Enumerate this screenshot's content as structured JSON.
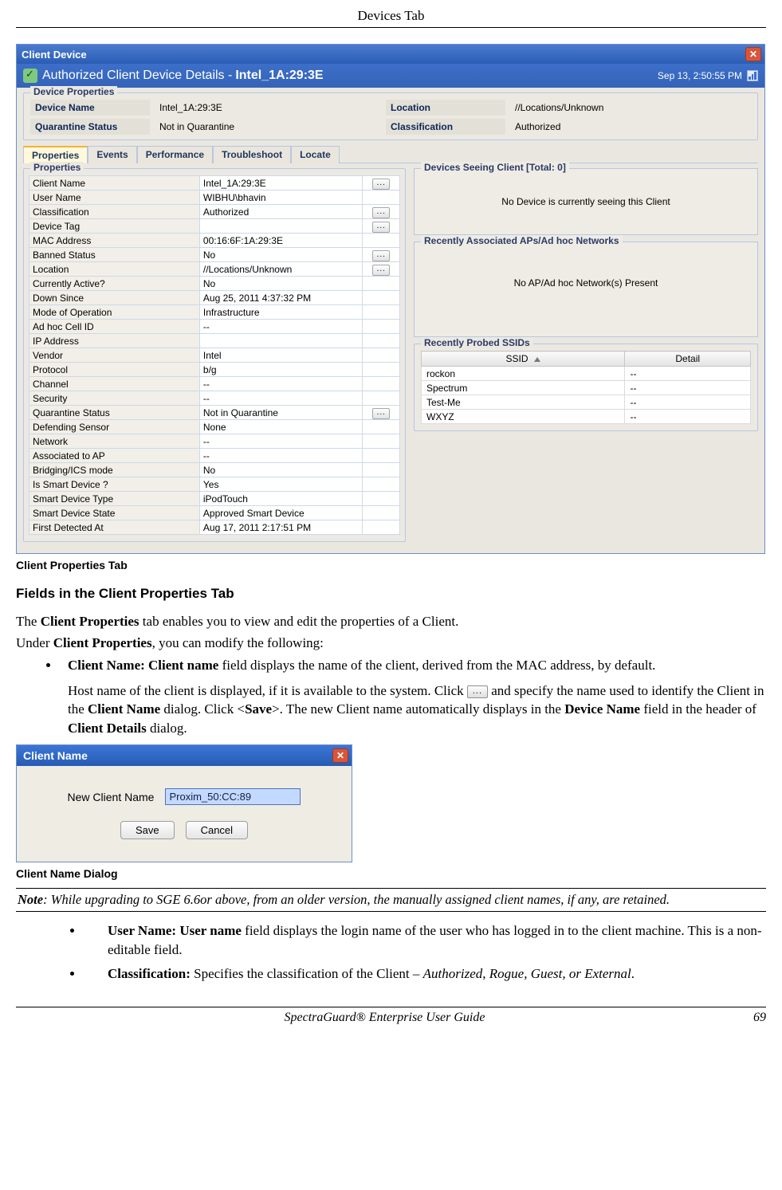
{
  "page_header": "Devices Tab",
  "footer_center": "SpectraGuard® Enterprise User Guide",
  "footer_page": "69",
  "win": {
    "title": "Client Device",
    "sub_prefix": "Authorized Client Device Details - ",
    "sub_name": "Intel_1A:29:3E",
    "time": "Sep 13, 2:50:55 PM",
    "dp_legend": "Device Properties",
    "dp": {
      "l1": "Device Name",
      "v1": "Intel_1A:29:3E",
      "l2": "Location",
      "v2": "//Locations/Unknown",
      "l3": "Quarantine Status",
      "v3": "Not in Quarantine",
      "l4": "Classification",
      "v4": "Authorized"
    },
    "tabs": [
      "Properties",
      "Events",
      "Performance",
      "Troubleshoot",
      "Locate"
    ],
    "props_legend": "Properties",
    "props": [
      [
        "Client Name",
        "Intel_1A:29:3E",
        true
      ],
      [
        "User Name",
        "WIBHU\\bhavin",
        false
      ],
      [
        "Classification",
        "Authorized",
        true
      ],
      [
        "Device Tag",
        "",
        true
      ],
      [
        "MAC Address",
        "00:16:6F:1A:29:3E",
        false
      ],
      [
        "Banned Status",
        "No",
        true
      ],
      [
        "Location",
        "//Locations/Unknown",
        true
      ],
      [
        "Currently Active?",
        "No",
        false
      ],
      [
        "Down Since",
        "Aug 25, 2011 4:37:32 PM",
        false
      ],
      [
        "Mode of Operation",
        "Infrastructure",
        false
      ],
      [
        "Ad hoc Cell ID",
        "--",
        false
      ],
      [
        "IP Address",
        "",
        false
      ],
      [
        "Vendor",
        "Intel",
        false
      ],
      [
        "Protocol",
        "b/g",
        false
      ],
      [
        "Channel",
        "--",
        false
      ],
      [
        "Security",
        "--",
        false
      ],
      [
        "Quarantine Status",
        "Not in Quarantine",
        true
      ],
      [
        "Defending Sensor",
        "None",
        false
      ],
      [
        "Network",
        "--",
        false
      ],
      [
        "Associated to AP",
        "--",
        false
      ],
      [
        "Bridging/ICS mode",
        "No",
        false
      ],
      [
        "Is Smart Device ?",
        "Yes",
        false
      ],
      [
        "Smart Device Type",
        "iPodTouch",
        false
      ],
      [
        "Smart Device State",
        "Approved Smart Device",
        false
      ],
      [
        "First Detected At",
        "Aug 17, 2011 2:17:51 PM",
        false
      ]
    ],
    "dsc_legend": "Devices Seeing Client [Total: 0]",
    "dsc_msg": "No Device is currently seeing this Client",
    "ra_legend": "Recently Associated APs/Ad hoc Networks",
    "ra_msg": "No AP/Ad hoc Network(s) Present",
    "rp_legend": "Recently Probed SSIDs",
    "ssid_h1": "SSID",
    "ssid_h2": "Detail",
    "ssid_rows": [
      [
        "rockon",
        "--"
      ],
      [
        "Spectrum",
        "--"
      ],
      [
        "Test-Me",
        "--"
      ],
      [
        "WXYZ",
        "--"
      ]
    ]
  },
  "caption1": "Client Properties Tab",
  "section_h": "Fields in the Client Properties Tab",
  "para1_a": "The ",
  "para1_b": "Client Properties",
  "para1_c": " tab enables you to view and edit the properties of a Client.",
  "para2_a": "Under ",
  "para2_b": "Client Properties",
  "para2_c": ", you can modify the following:",
  "bullet1_a": "Client Name:  Client name",
  "bullet1_b": " field displays the name of the client, derived from the MAC address, by default.",
  "bullet1_c": "Host name of the client is displayed, if it is available to the system. Click ",
  "bullet1_d": " and specify the name used to identify the Client in the ",
  "bullet1_e": "Client Name",
  "bullet1_f": " dialog. Click <",
  "bullet1_g": "Save",
  "bullet1_h": ">. The new Client name automatically displays in the ",
  "bullet1_i": "Device Name",
  "bullet1_j": " field in the header of ",
  "bullet1_k": "Client Details",
  "bullet1_l": " dialog.",
  "dlg": {
    "title": "Client Name",
    "label": "New  Client Name",
    "value": "Proxim_50:CC:89",
    "save": "Save",
    "cancel": "Cancel"
  },
  "caption2": "Client Name Dialog",
  "note_a": "Note",
  "note_b": ": While upgrading to SGE 6.6or above, from an older version, the manually assigned client names, if any, are retained.",
  "bullet2_a": "User Name:  User name",
  "bullet2_b": " field displays the login name of the user who has logged in to the client machine. This is a non-editable field.",
  "bullet3_a": "Classification:",
  "bullet3_b": " Specifies the classification of the Client – ",
  "bullet3_c": "Authorized",
  "bullet3_d": ", ",
  "bullet3_e": "Rogue, Guest, or External",
  "bullet3_f": "."
}
